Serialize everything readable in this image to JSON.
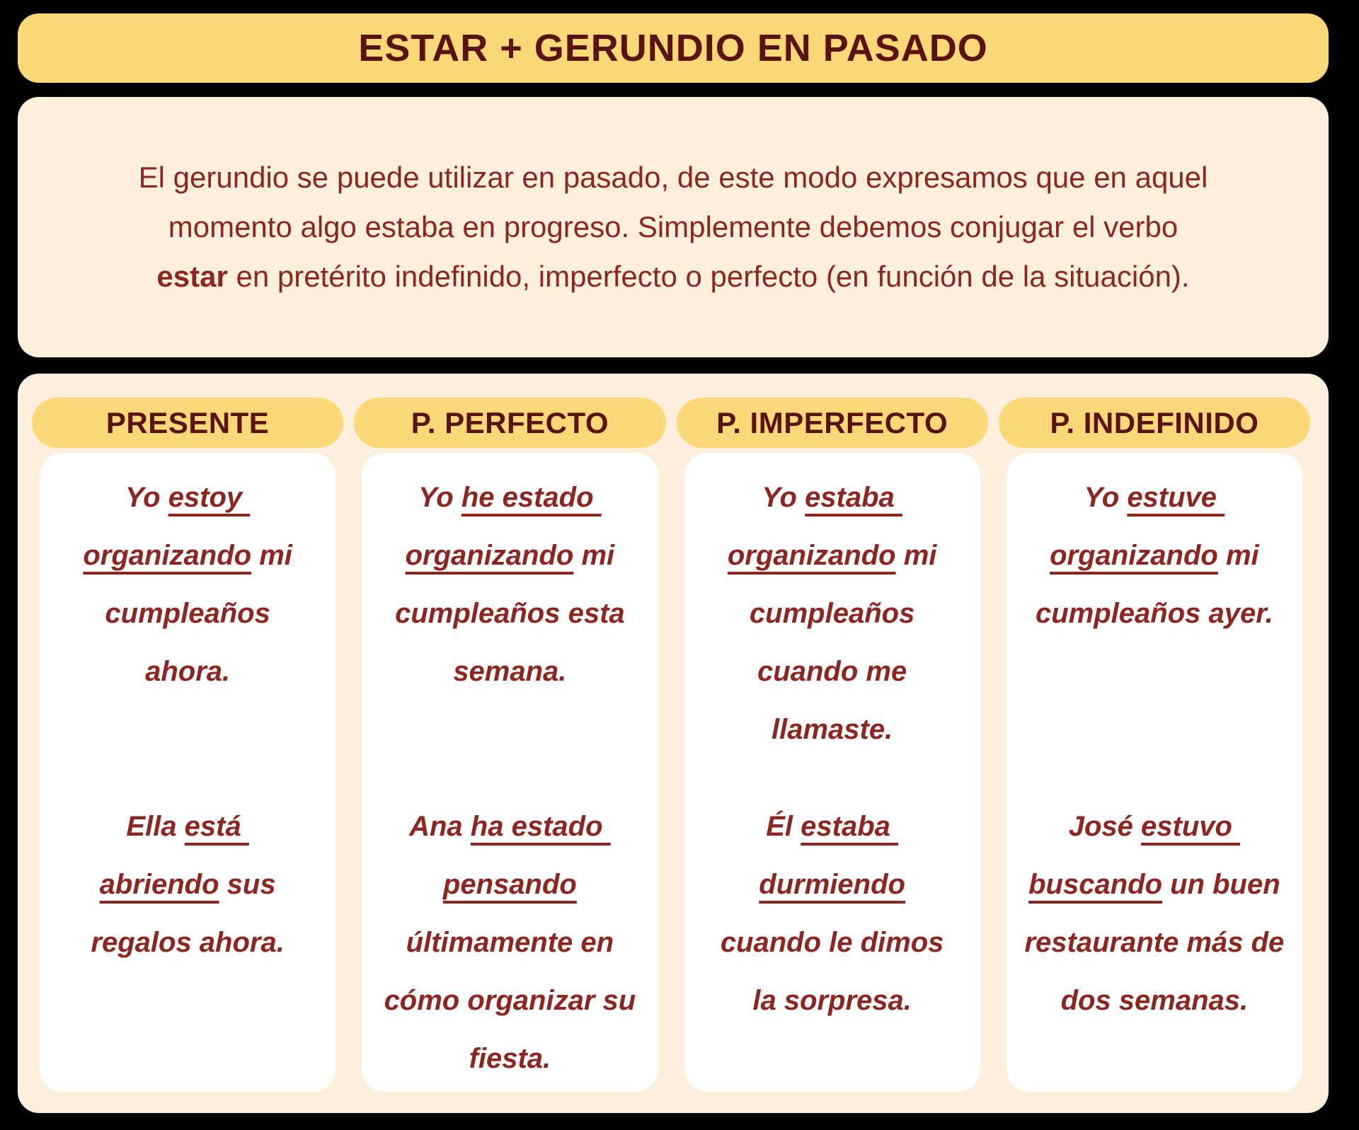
{
  "title": "ESTAR + GERUNDIO EN PASADO",
  "intro": {
    "lines": [
      [
        {
          "t": "El gerundio se puede utilizar en pasado, de este modo expresamos que en aquel"
        }
      ],
      [
        {
          "t": "momento algo estaba en progreso. Simplemente debemos conjugar el verbo"
        }
      ],
      [
        {
          "t": "estar",
          "b": true
        },
        {
          "t": " en pretérito indefinido, imperfecto o perfecto (en función de la situación)."
        }
      ]
    ]
  },
  "columns": [
    {
      "header": "PRESENTE",
      "examples": [
        {
          "lines": [
            [
              {
                "t": "Yo "
              },
              {
                "t": "estoy ",
                "u": true
              }
            ],
            [
              {
                "t": "organizando",
                "u": true
              },
              {
                "t": " mi"
              }
            ],
            [
              {
                "t": "cumpleaños"
              }
            ],
            [
              {
                "t": "ahora."
              }
            ]
          ]
        },
        {
          "lines": [
            [
              {
                "t": "Ella "
              },
              {
                "t": "está ",
                "u": true
              }
            ],
            [
              {
                "t": "abriendo",
                "u": true
              },
              {
                "t": " sus"
              }
            ],
            [
              {
                "t": "regalos ahora."
              }
            ]
          ]
        }
      ]
    },
    {
      "header": "P. PERFECTO",
      "examples": [
        {
          "lines": [
            [
              {
                "t": "Yo "
              },
              {
                "t": "he estado ",
                "u": true
              }
            ],
            [
              {
                "t": "organizando",
                "u": true
              },
              {
                "t": " mi"
              }
            ],
            [
              {
                "t": "cumpleaños esta"
              }
            ],
            [
              {
                "t": "semana."
              }
            ]
          ]
        },
        {
          "lines": [
            [
              {
                "t": "Ana "
              },
              {
                "t": "ha estado ",
                "u": true
              }
            ],
            [
              {
                "t": "pensando",
                "u": true
              }
            ],
            [
              {
                "t": "últimamente en"
              }
            ],
            [
              {
                "t": "cómo organizar su"
              }
            ],
            [
              {
                "t": "fiesta."
              }
            ]
          ]
        }
      ]
    },
    {
      "header": "P. IMPERFECTO",
      "examples": [
        {
          "lines": [
            [
              {
                "t": "Yo "
              },
              {
                "t": "estaba ",
                "u": true
              }
            ],
            [
              {
                "t": "organizando",
                "u": true
              },
              {
                "t": " mi"
              }
            ],
            [
              {
                "t": "cumpleaños"
              }
            ],
            [
              {
                "t": "cuando me"
              }
            ],
            [
              {
                "t": "llamaste."
              }
            ]
          ]
        },
        {
          "lines": [
            [
              {
                "t": "Él "
              },
              {
                "t": "estaba ",
                "u": true
              }
            ],
            [
              {
                "t": "durmiendo",
                "u": true
              }
            ],
            [
              {
                "t": "cuando le dimos"
              }
            ],
            [
              {
                "t": "la sorpresa."
              }
            ]
          ]
        }
      ]
    },
    {
      "header": "P. INDEFINIDO",
      "examples": [
        {
          "lines": [
            [
              {
                "t": "Yo "
              },
              {
                "t": "estuve ",
                "u": true
              }
            ],
            [
              {
                "t": "organizando",
                "u": true
              },
              {
                "t": " mi"
              }
            ],
            [
              {
                "t": "cumpleaños ayer."
              }
            ]
          ]
        },
        {
          "lines": [
            [
              {
                "t": "José "
              },
              {
                "t": "estuvo ",
                "u": true
              }
            ],
            [
              {
                "t": "buscando",
                "u": true
              },
              {
                "t": " un buen"
              }
            ],
            [
              {
                "t": "restaurante más de"
              }
            ],
            [
              {
                "t": "dos semanas."
              }
            ]
          ]
        }
      ]
    }
  ],
  "colors": {
    "background": "#000000",
    "banner_yellow": "#FBD878",
    "panel_cream": "#FCF0DC",
    "card_white": "#FFFFFF",
    "heading_maroon": "#5A1212",
    "text_maroon": "#8B2620"
  }
}
